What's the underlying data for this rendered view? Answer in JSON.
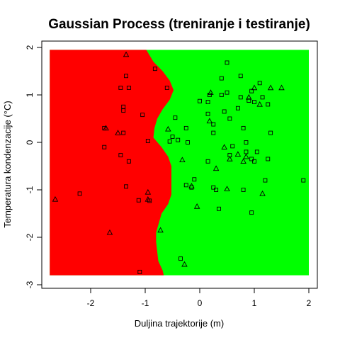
{
  "chart_data": {
    "type": "scatter",
    "title": "Gaussian Process (treniranje i testiranje)",
    "xlabel": "Duljina trajektorije (m)",
    "ylabel": "Temperatura kondenzacije (°C)",
    "xlim": [
      -2.75,
      2
    ],
    "ylim": [
      -2.8,
      1.95
    ],
    "x_ticks": [
      -2,
      -1,
      0,
      1,
      2
    ],
    "x_tick_labels": [
      "-2",
      "-1",
      "0",
      "1",
      "2"
    ],
    "y_ticks": [
      -3,
      -2,
      -1,
      0,
      1,
      2
    ],
    "y_tick_labels": [
      "-3",
      "-2",
      "-1",
      "0",
      "1",
      "2"
    ],
    "grid": false,
    "legend": "none",
    "colors": {
      "class_left": "#ff0000",
      "class_right": "#00ff00",
      "marker_edge": "#000000"
    },
    "decision_boundary": {
      "description_values": "x of boundary at each y (data units)",
      "y": [
        1.95,
        1.7,
        1.5,
        1.3,
        1.1,
        0.9,
        0.7,
        0.5,
        0.3,
        0.1,
        -0.1,
        -0.3,
        -0.5,
        -0.7,
        -0.9,
        -1.1,
        -1.3,
        -1.5,
        -1.7,
        -1.9,
        -2.1,
        -2.3,
        -2.5,
        -2.7,
        -2.8
      ],
      "x": [
        -0.98,
        -0.85,
        -0.68,
        -0.55,
        -0.48,
        -0.55,
        -0.68,
        -0.78,
        -0.83,
        -0.85,
        -0.7,
        -0.58,
        -0.52,
        -0.52,
        -0.52,
        -0.52,
        -0.58,
        -0.7,
        -0.75,
        -0.8,
        -0.8,
        -0.78,
        -0.76,
        -0.68,
        -0.66
      ]
    },
    "series": [
      {
        "marker": "square",
        "points": [
          [
            -1.35,
            1.4
          ],
          [
            -1.45,
            1.15
          ],
          [
            -1.3,
            1.15
          ],
          [
            -0.82,
            1.55
          ],
          [
            -1.4,
            0.75
          ],
          [
            -1.4,
            0.67
          ],
          [
            -1.05,
            0.58
          ],
          [
            -1.75,
            0.3
          ],
          [
            -1.75,
            -0.1
          ],
          [
            -1.4,
            0.2
          ],
          [
            -0.95,
            0.03
          ],
          [
            -1.3,
            -0.4
          ],
          [
            -1.45,
            -0.27
          ],
          [
            -1.35,
            -0.93
          ],
          [
            -1.12,
            -1.22
          ],
          [
            -2.2,
            -1.08
          ],
          [
            -1.1,
            -2.73
          ],
          [
            -0.92,
            -1.23
          ],
          [
            -0.6,
            1.15
          ],
          [
            -0.5,
            0.12
          ],
          [
            -0.4,
            0.05
          ],
          [
            -0.55,
            0.02
          ],
          [
            -0.45,
            0.52
          ],
          [
            -0.25,
            0.3
          ],
          [
            -0.22,
            0.0
          ],
          [
            -0.25,
            -0.9
          ],
          [
            -0.1,
            -0.78
          ],
          [
            0.0,
            0.87
          ],
          [
            0.15,
            0.6
          ],
          [
            0.18,
            1.0
          ],
          [
            0.25,
            0.2
          ],
          [
            0.25,
            -0.95
          ],
          [
            0.3,
            -1.0
          ],
          [
            0.4,
            1.0
          ],
          [
            0.4,
            1.35
          ],
          [
            0.45,
            0.65
          ],
          [
            0.5,
            1.05
          ],
          [
            0.55,
            0.5
          ],
          [
            0.55,
            -0.27
          ],
          [
            0.35,
            -1.4
          ],
          [
            0.75,
            1.4
          ],
          [
            0.7,
            0.72
          ],
          [
            0.8,
            0.3
          ],
          [
            0.85,
            0.0
          ],
          [
            0.9,
            0.88
          ],
          [
            0.95,
            1.08
          ],
          [
            1.0,
            0.85
          ],
          [
            0.8,
            -1.0
          ],
          [
            1.0,
            -0.4
          ],
          [
            0.95,
            -1.48
          ],
          [
            1.1,
            1.25
          ],
          [
            1.15,
            0.95
          ],
          [
            1.25,
            -0.35
          ],
          [
            1.25,
            0.8
          ],
          [
            1.3,
            0.2
          ],
          [
            1.2,
            -0.8
          ],
          [
            1.9,
            -0.8
          ],
          [
            0.5,
            1.68
          ],
          [
            -0.35,
            -2.45
          ],
          [
            0.15,
            -0.4
          ],
          [
            0.25,
            0.38
          ],
          [
            -0.15,
            -0.95
          ],
          [
            0.6,
            -0.08
          ],
          [
            0.85,
            -0.2
          ],
          [
            0.95,
            -0.35
          ],
          [
            1.05,
            -0.2
          ],
          [
            0.75,
            0.95
          ],
          [
            0.15,
            0.85
          ]
        ]
      },
      {
        "marker": "triangle",
        "points": [
          [
            -1.35,
            1.85
          ],
          [
            -1.72,
            0.3
          ],
          [
            -1.5,
            0.2
          ],
          [
            -1.65,
            -1.9
          ],
          [
            -2.65,
            -1.2
          ],
          [
            -0.95,
            -1.05
          ],
          [
            -0.95,
            -1.2
          ],
          [
            -0.72,
            -1.85
          ],
          [
            -0.58,
            0.28
          ],
          [
            -0.32,
            -0.37
          ],
          [
            -0.15,
            -0.92
          ],
          [
            -0.05,
            -1.35
          ],
          [
            0.2,
            1.05
          ],
          [
            0.18,
            0.45
          ],
          [
            0.3,
            -0.55
          ],
          [
            0.45,
            -0.1
          ],
          [
            0.5,
            -0.98
          ],
          [
            0.55,
            -0.35
          ],
          [
            0.7,
            -0.25
          ],
          [
            0.8,
            -0.4
          ],
          [
            0.9,
            0.95
          ],
          [
            1.0,
            1.15
          ],
          [
            1.1,
            0.8
          ],
          [
            1.3,
            1.15
          ],
          [
            1.5,
            1.15
          ],
          [
            1.15,
            -1.08
          ],
          [
            -0.28,
            -2.57
          ],
          [
            0.85,
            -0.3
          ]
        ]
      }
    ]
  }
}
